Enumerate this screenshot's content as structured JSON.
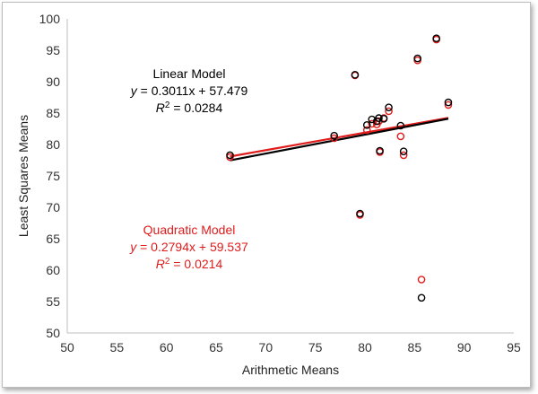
{
  "chart_data": {
    "type": "scatter",
    "xlabel": "Arithmetic Means",
    "ylabel": "Least Squares Means",
    "xlim": [
      50,
      95
    ],
    "ylim": [
      50,
      100
    ],
    "x_ticks": [
      "50",
      "55",
      "60",
      "65",
      "70",
      "75",
      "80",
      "85",
      "90",
      "95"
    ],
    "y_ticks": [
      "50",
      "55",
      "60",
      "65",
      "70",
      "75",
      "80",
      "85",
      "90",
      "95",
      "100"
    ],
    "grid": false,
    "series": [
      {
        "name": "Linear Model",
        "color": "#000000",
        "points": [
          [
            66.4,
            78.3
          ],
          [
            76.9,
            81.4
          ],
          [
            79.0,
            91.1
          ],
          [
            79.5,
            69.0
          ],
          [
            80.2,
            83.1
          ],
          [
            80.7,
            84.0
          ],
          [
            81.2,
            83.7
          ],
          [
            81.4,
            84.2
          ],
          [
            81.5,
            79.0
          ],
          [
            81.9,
            84.1
          ],
          [
            82.4,
            85.9
          ],
          [
            83.6,
            83.0
          ],
          [
            83.9,
            78.9
          ],
          [
            85.3,
            93.7
          ],
          [
            85.7,
            55.6
          ],
          [
            87.2,
            96.9
          ],
          [
            88.4,
            86.7
          ]
        ],
        "trendline": {
          "slope": 0.3011,
          "intercept": 57.479,
          "x_range": [
            66.4,
            88.4
          ]
        },
        "annotation": {
          "title": "Linear Model",
          "equation_lhs": "y",
          "equation_rhs": " = 0.3011x + 57.479",
          "r2_lhs": "R",
          "r2_sup": "2",
          "r2_rhs": " = 0.0284"
        }
      },
      {
        "name": "Quadratic Model",
        "color": "#e01b1b",
        "points": [
          [
            66.4,
            78.0
          ],
          [
            76.9,
            81.0
          ],
          [
            79.0,
            91.0
          ],
          [
            79.5,
            68.8
          ],
          [
            80.2,
            82.3
          ],
          [
            80.7,
            83.3
          ],
          [
            81.2,
            83.2
          ],
          [
            81.4,
            83.7
          ],
          [
            81.5,
            78.8
          ],
          [
            81.9,
            84.2
          ],
          [
            82.4,
            85.3
          ],
          [
            83.6,
            81.3
          ],
          [
            83.9,
            78.3
          ],
          [
            85.3,
            93.4
          ],
          [
            85.7,
            58.5
          ],
          [
            87.2,
            96.7
          ],
          [
            88.4,
            86.3
          ]
        ],
        "trendline": {
          "slope": 0.2794,
          "intercept": 59.537,
          "x_range": [
            66.4,
            88.4
          ]
        },
        "annotation": {
          "title": "Quadratic Model",
          "equation_lhs": "y",
          "equation_rhs": " = 0.2794x + 59.537",
          "r2_lhs": "R",
          "r2_sup": "2",
          "r2_rhs": " = 0.0214"
        }
      }
    ]
  }
}
